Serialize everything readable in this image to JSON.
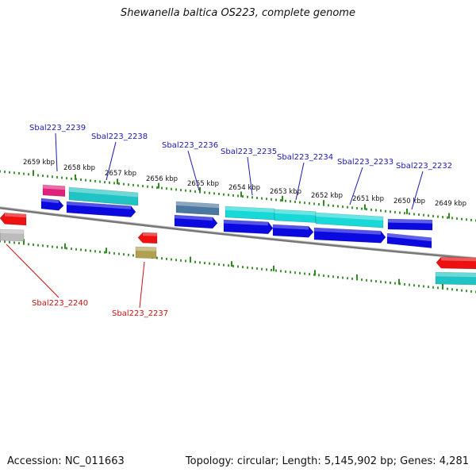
{
  "title": "Shewanella baltica OS223, complete genome",
  "footer": {
    "accession": "Accession: NC_011663",
    "summary": "Topology: circular; Length: 5,145,902 bp; Genes: 4,281"
  },
  "colors": {
    "backbone": "#777777",
    "tick": "#2e8b1e",
    "label_top": "#1a1ab0",
    "label_bottom": "#cc1111",
    "blue": "#0a0ae0",
    "cyan": "#18d8d8",
    "teal": "#20c4c4",
    "magenta": "#e0207a",
    "steel": "#4a78a0",
    "red": "#ee1111",
    "gray": "#bbbbbb",
    "olive": "#b0a050"
  },
  "scale_labels": [
    "2659 kbp",
    "2658 kbp",
    "2657 kbp",
    "2656 kbp",
    "2655 kbp",
    "2654 kbp",
    "2653 kbp",
    "2652 kbp",
    "2651 kbp",
    "2650 kbp",
    "2649 kbp"
  ],
  "gene_labels_top": [
    "Sbal223_2239",
    "Sbal223_2238",
    "Sbal223_2236",
    "Sbal223_2235",
    "Sbal223_2234",
    "Sbal223_2233",
    "Sbal223_2232"
  ],
  "gene_labels_bottom": [
    "Sbal223_2240",
    "Sbal223_2237"
  ]
}
